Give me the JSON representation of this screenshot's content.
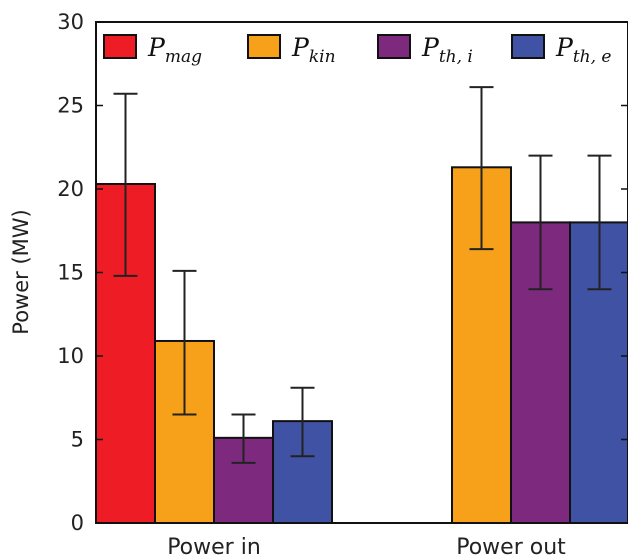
{
  "chart_data": {
    "type": "bar",
    "categories": [
      "Power in",
      "Power out"
    ],
    "ylabel": "Power (MW)",
    "xlabel": "",
    "ylim": [
      0,
      30
    ],
    "yticks": [
      0,
      5,
      10,
      15,
      20,
      25,
      30
    ],
    "grid": false,
    "legend_position": "top",
    "series": [
      {
        "legend_base": "P",
        "legend_sub": "mag",
        "color": "#ee1c25",
        "values": [
          20.3,
          null
        ],
        "errors": [
          [
            14.8,
            25.7
          ],
          null
        ]
      },
      {
        "legend_base": "P",
        "legend_sub": "kin",
        "color": "#f7a11b",
        "values": [
          10.9,
          21.3
        ],
        "errors": [
          [
            6.5,
            15.1
          ],
          [
            16.4,
            26.1
          ]
        ]
      },
      {
        "legend_base": "P",
        "legend_sub": "th, i",
        "color": "#7d2a7e",
        "values": [
          5.1,
          18.0
        ],
        "errors": [
          [
            3.6,
            6.5
          ],
          [
            14.0,
            22.0
          ]
        ]
      },
      {
        "legend_base": "P",
        "legend_sub": "th, e",
        "color": "#3f52a4",
        "values": [
          6.1,
          18.0
        ],
        "errors": [
          [
            4.0,
            8.1
          ],
          [
            14.0,
            22.0
          ]
        ]
      }
    ]
  }
}
